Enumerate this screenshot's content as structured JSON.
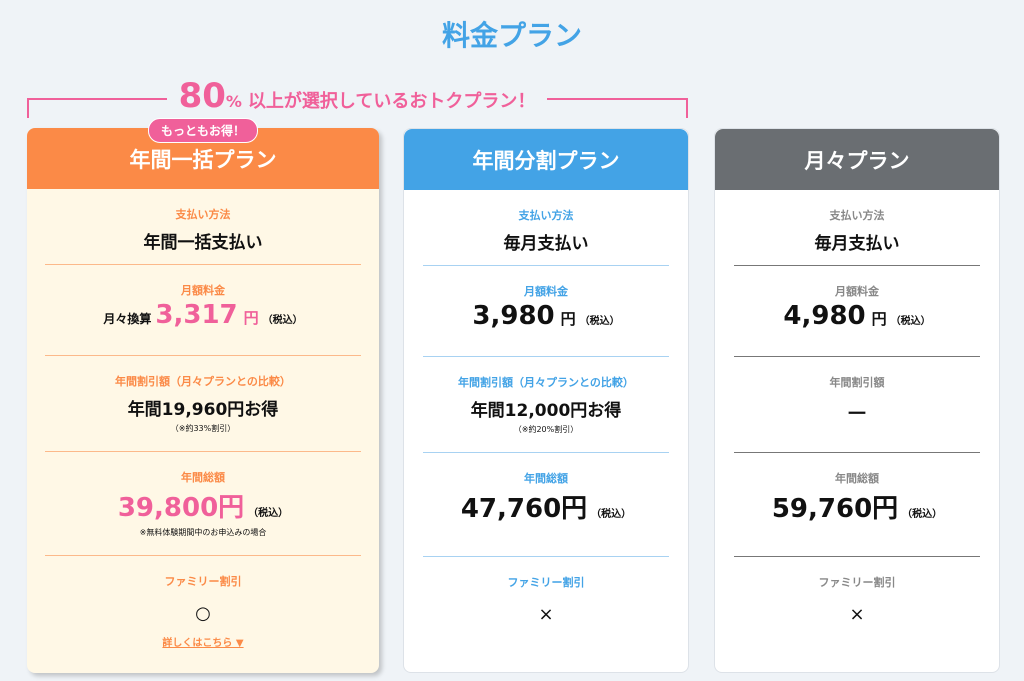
{
  "page_title": "料金プラン",
  "promo": {
    "number": "80",
    "percent": "%",
    "text": "以上が選択しているおトクプラン！"
  },
  "colors": {
    "accent_blue": "#43a3e6",
    "accent_orange": "#fb8a47",
    "accent_pink": "#f0609a",
    "gray": "#6a6e72"
  },
  "plans": [
    {
      "name": "年間一括プラン",
      "badge": "もっともお得！",
      "payment_label": "支払い方法",
      "payment": "年間一括支払い",
      "monthly_label": "月額料金",
      "monthly_prefix": "月々換算",
      "monthly_price": "3,317",
      "yen": "円",
      "tax": "（税込）",
      "discount_label": "年間割引額（月々プランとの比較）",
      "discount": "年間19,960円お得",
      "discount_note": "（※約33%割引）",
      "total_label": "年間総額",
      "total": "39,800円",
      "total_note": "※無料体験期間中のお申込みの場合",
      "family_label": "ファミリー割引",
      "family": "○",
      "details_link": "詳しくはこちら ▼"
    },
    {
      "name": "年間分割プラン",
      "payment_label": "支払い方法",
      "payment": "毎月支払い",
      "monthly_label": "月額料金",
      "monthly_price": "3,980",
      "yen": "円",
      "tax": "（税込）",
      "discount_label": "年間割引額（月々プランとの比較）",
      "discount": "年間12,000円お得",
      "discount_note": "（※約20%割引）",
      "total_label": "年間総額",
      "total": "47,760円",
      "family_label": "ファミリー割引",
      "family": "×"
    },
    {
      "name": "月々プラン",
      "payment_label": "支払い方法",
      "payment": "毎月支払い",
      "monthly_label": "月額料金",
      "monthly_price": "4,980",
      "yen": "円",
      "tax": "（税込）",
      "discount_label": "年間割引額",
      "discount": "－",
      "total_label": "年間総額",
      "total": "59,760円",
      "family_label": "ファミリー割引",
      "family": "×"
    }
  ]
}
